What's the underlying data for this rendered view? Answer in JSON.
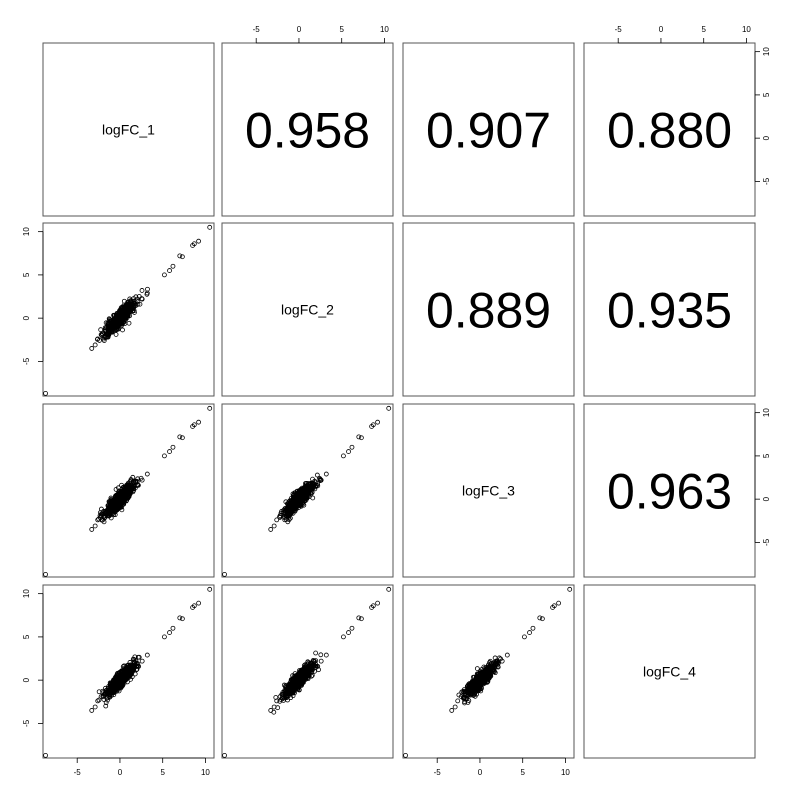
{
  "chart_data": {
    "type": "scatter",
    "variables": [
      "logFC_1",
      "logFC_2",
      "logFC_3",
      "logFC_4"
    ],
    "correlations": [
      {
        "row": 0,
        "col": 1,
        "label": "0.958"
      },
      {
        "row": 0,
        "col": 2,
        "label": "0.907"
      },
      {
        "row": 0,
        "col": 3,
        "label": "0.880"
      },
      {
        "row": 1,
        "col": 2,
        "label": "0.889"
      },
      {
        "row": 1,
        "col": 3,
        "label": "0.935"
      },
      {
        "row": 2,
        "col": 3,
        "label": "0.963"
      }
    ],
    "axis_range": [
      -9,
      11
    ],
    "ticks": [
      -5,
      0,
      5,
      10
    ],
    "tick_labels": [
      "-5",
      "0",
      "5",
      "10"
    ],
    "shared_points": [
      [
        10.5,
        10.5
      ],
      [
        9.2,
        8.9
      ],
      [
        8.7,
        8.6
      ],
      [
        8.5,
        8.4
      ],
      [
        7.3,
        7.1
      ],
      [
        7.0,
        7.2
      ],
      [
        6.2,
        6.0
      ],
      [
        5.8,
        5.5
      ],
      [
        5.2,
        5.0
      ],
      [
        3.2,
        2.9
      ],
      [
        2.6,
        2.2
      ],
      [
        2.1,
        1.6
      ],
      [
        1.6,
        1.2
      ],
      [
        -8.7,
        -8.7
      ],
      [
        -3.3,
        -3.5
      ],
      [
        -2.9,
        -3.1
      ],
      [
        -2.6,
        -2.4
      ],
      [
        -2.2,
        -1.9
      ]
    ],
    "cloud": {
      "n": 650,
      "sd_x": 0.85,
      "slope": 0.95,
      "noise": 0.45
    }
  }
}
